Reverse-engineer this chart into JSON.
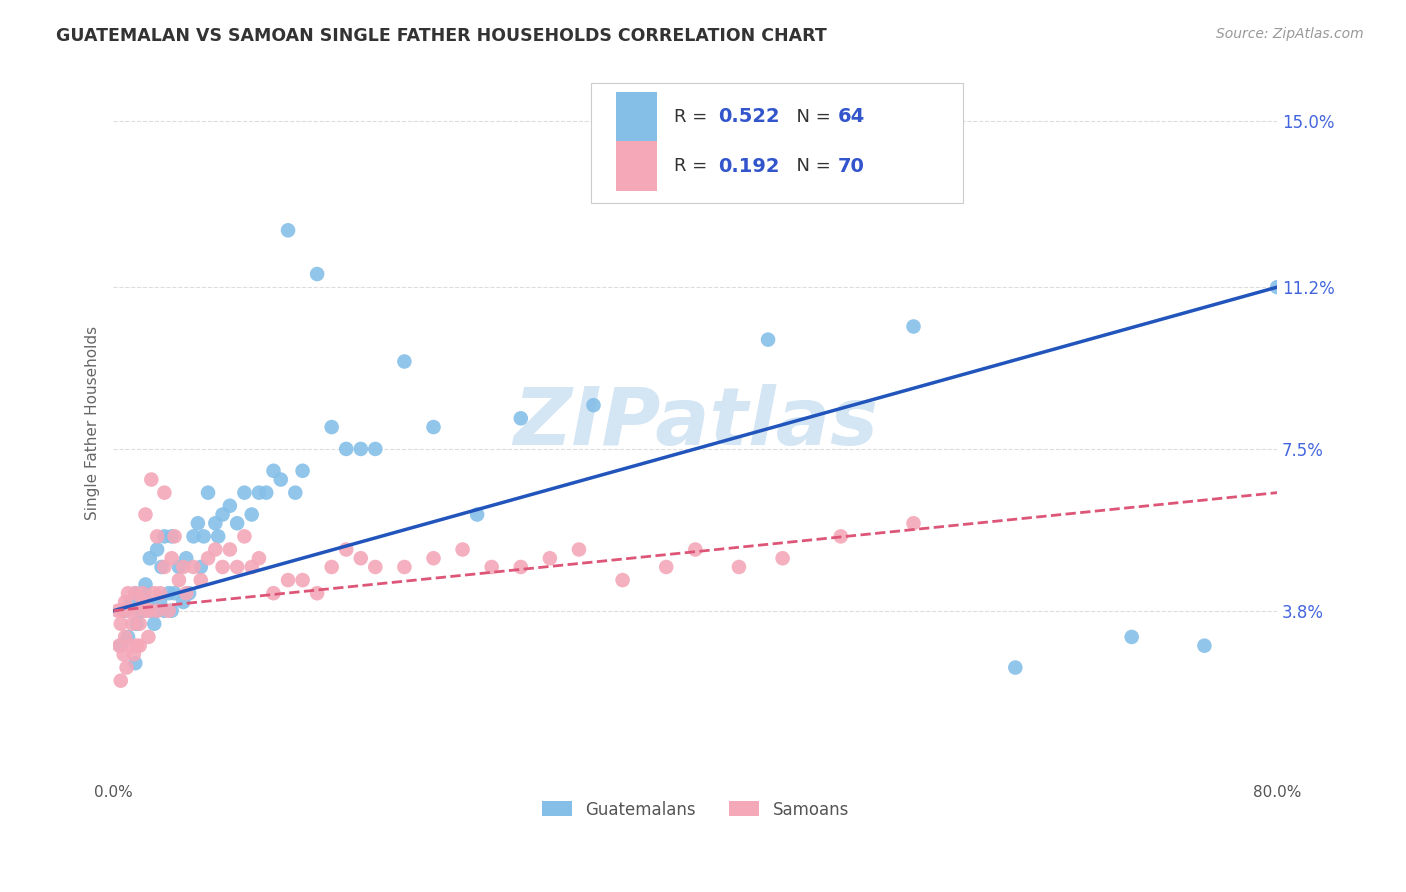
{
  "title": "GUATEMALAN VS SAMOAN SINGLE FATHER HOUSEHOLDS CORRELATION CHART",
  "source": "Source: ZipAtlas.com",
  "ylabel": "Single Father Households",
  "ytick_labels": [
    "3.8%",
    "7.5%",
    "11.2%",
    "15.0%"
  ],
  "ytick_values": [
    0.038,
    0.075,
    0.112,
    0.15
  ],
  "xmin": 0.0,
  "xmax": 0.8,
  "ymin": 0.0,
  "ymax": 0.162,
  "blue_color": "#85bfe8",
  "pink_color": "#f4a8b8",
  "blue_line_color": "#2255bb",
  "pink_line_color": "#dd5577",
  "watermark_color": "#b8d4ee",
  "background_color": "#ffffff",
  "grid_color": "#dddddd",
  "title_color": "#333333",
  "source_color": "#999999",
  "ylabel_color": "#666666",
  "tick_color": "#4466dd",
  "legend_text_color": "#3355cc",
  "legend_N_color": "#dd3355",
  "blue_line_y0": 0.038,
  "blue_line_y1": 0.112,
  "pink_line_y0": 0.038,
  "pink_line_y1": 0.065,
  "guatemalan_x": [
    0.005,
    0.008,
    0.01,
    0.012,
    0.015,
    0.015,
    0.016,
    0.018,
    0.02,
    0.021,
    0.022,
    0.023,
    0.025,
    0.025,
    0.028,
    0.03,
    0.03,
    0.032,
    0.033,
    0.035,
    0.035,
    0.038,
    0.04,
    0.04,
    0.042,
    0.045,
    0.048,
    0.05,
    0.052,
    0.055,
    0.058,
    0.06,
    0.062,
    0.065,
    0.07,
    0.072,
    0.075,
    0.08,
    0.085,
    0.09,
    0.095,
    0.1,
    0.105,
    0.11,
    0.115,
    0.12,
    0.125,
    0.13,
    0.14,
    0.15,
    0.16,
    0.17,
    0.18,
    0.2,
    0.22,
    0.25,
    0.28,
    0.33,
    0.45,
    0.55,
    0.62,
    0.7,
    0.75,
    0.8
  ],
  "guatemalan_y": [
    0.03,
    0.038,
    0.032,
    0.04,
    0.042,
    0.026,
    0.035,
    0.038,
    0.038,
    0.042,
    0.044,
    0.04,
    0.038,
    0.05,
    0.035,
    0.038,
    0.052,
    0.04,
    0.048,
    0.038,
    0.055,
    0.042,
    0.038,
    0.055,
    0.042,
    0.048,
    0.04,
    0.05,
    0.042,
    0.055,
    0.058,
    0.048,
    0.055,
    0.065,
    0.058,
    0.055,
    0.06,
    0.062,
    0.058,
    0.065,
    0.06,
    0.065,
    0.065,
    0.07,
    0.068,
    0.125,
    0.065,
    0.07,
    0.115,
    0.08,
    0.075,
    0.075,
    0.075,
    0.095,
    0.08,
    0.06,
    0.082,
    0.085,
    0.1,
    0.103,
    0.025,
    0.032,
    0.03,
    0.112
  ],
  "samoan_x": [
    0.003,
    0.004,
    0.005,
    0.005,
    0.006,
    0.007,
    0.008,
    0.008,
    0.009,
    0.01,
    0.01,
    0.012,
    0.013,
    0.014,
    0.015,
    0.015,
    0.016,
    0.018,
    0.018,
    0.02,
    0.02,
    0.022,
    0.022,
    0.024,
    0.025,
    0.026,
    0.028,
    0.03,
    0.03,
    0.032,
    0.035,
    0.035,
    0.038,
    0.04,
    0.042,
    0.045,
    0.048,
    0.05,
    0.055,
    0.06,
    0.065,
    0.07,
    0.075,
    0.08,
    0.085,
    0.09,
    0.095,
    0.1,
    0.11,
    0.12,
    0.13,
    0.14,
    0.15,
    0.16,
    0.17,
    0.18,
    0.2,
    0.22,
    0.24,
    0.26,
    0.28,
    0.3,
    0.32,
    0.35,
    0.38,
    0.4,
    0.43,
    0.46,
    0.5,
    0.55
  ],
  "samoan_y": [
    0.038,
    0.03,
    0.022,
    0.035,
    0.038,
    0.028,
    0.032,
    0.04,
    0.025,
    0.038,
    0.042,
    0.03,
    0.035,
    0.028,
    0.038,
    0.042,
    0.03,
    0.035,
    0.03,
    0.04,
    0.042,
    0.038,
    0.06,
    0.032,
    0.038,
    0.068,
    0.042,
    0.038,
    0.055,
    0.042,
    0.048,
    0.065,
    0.038,
    0.05,
    0.055,
    0.045,
    0.048,
    0.042,
    0.048,
    0.045,
    0.05,
    0.052,
    0.048,
    0.052,
    0.048,
    0.055,
    0.048,
    0.05,
    0.042,
    0.045,
    0.045,
    0.042,
    0.048,
    0.052,
    0.05,
    0.048,
    0.048,
    0.05,
    0.052,
    0.048,
    0.048,
    0.05,
    0.052,
    0.045,
    0.048,
    0.052,
    0.048,
    0.05,
    0.055,
    0.058
  ]
}
